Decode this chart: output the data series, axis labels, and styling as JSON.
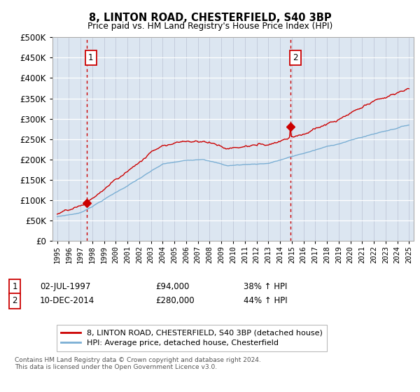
{
  "title": "8, LINTON ROAD, CHESTERFIELD, S40 3BP",
  "subtitle": "Price paid vs. HM Land Registry's House Price Index (HPI)",
  "hpi_label": "HPI: Average price, detached house, Chesterfield",
  "property_label": "8, LINTON ROAD, CHESTERFIELD, S40 3BP (detached house)",
  "property_color": "#cc0000",
  "hpi_color": "#7bafd4",
  "background_color": "#dce6f1",
  "annotation1": {
    "num": "1",
    "date": "02-JUL-1997",
    "price": "£94,000",
    "pct": "38% ↑ HPI"
  },
  "annotation2": {
    "num": "2",
    "date": "10-DEC-2014",
    "price": "£280,000",
    "pct": "44% ↑ HPI"
  },
  "ylim": [
    0,
    500000
  ],
  "yticks": [
    0,
    50000,
    100000,
    150000,
    200000,
    250000,
    300000,
    350000,
    400000,
    450000,
    500000
  ],
  "copyright": "Contains HM Land Registry data © Crown copyright and database right 2024.\nThis data is licensed under the Open Government Licence v3.0.",
  "sale1_year": 1997.5,
  "sale1_price": 94000,
  "sale2_year": 2014.92,
  "sale2_price": 280000,
  "xlim_left": 1994.6,
  "xlim_right": 2025.4
}
